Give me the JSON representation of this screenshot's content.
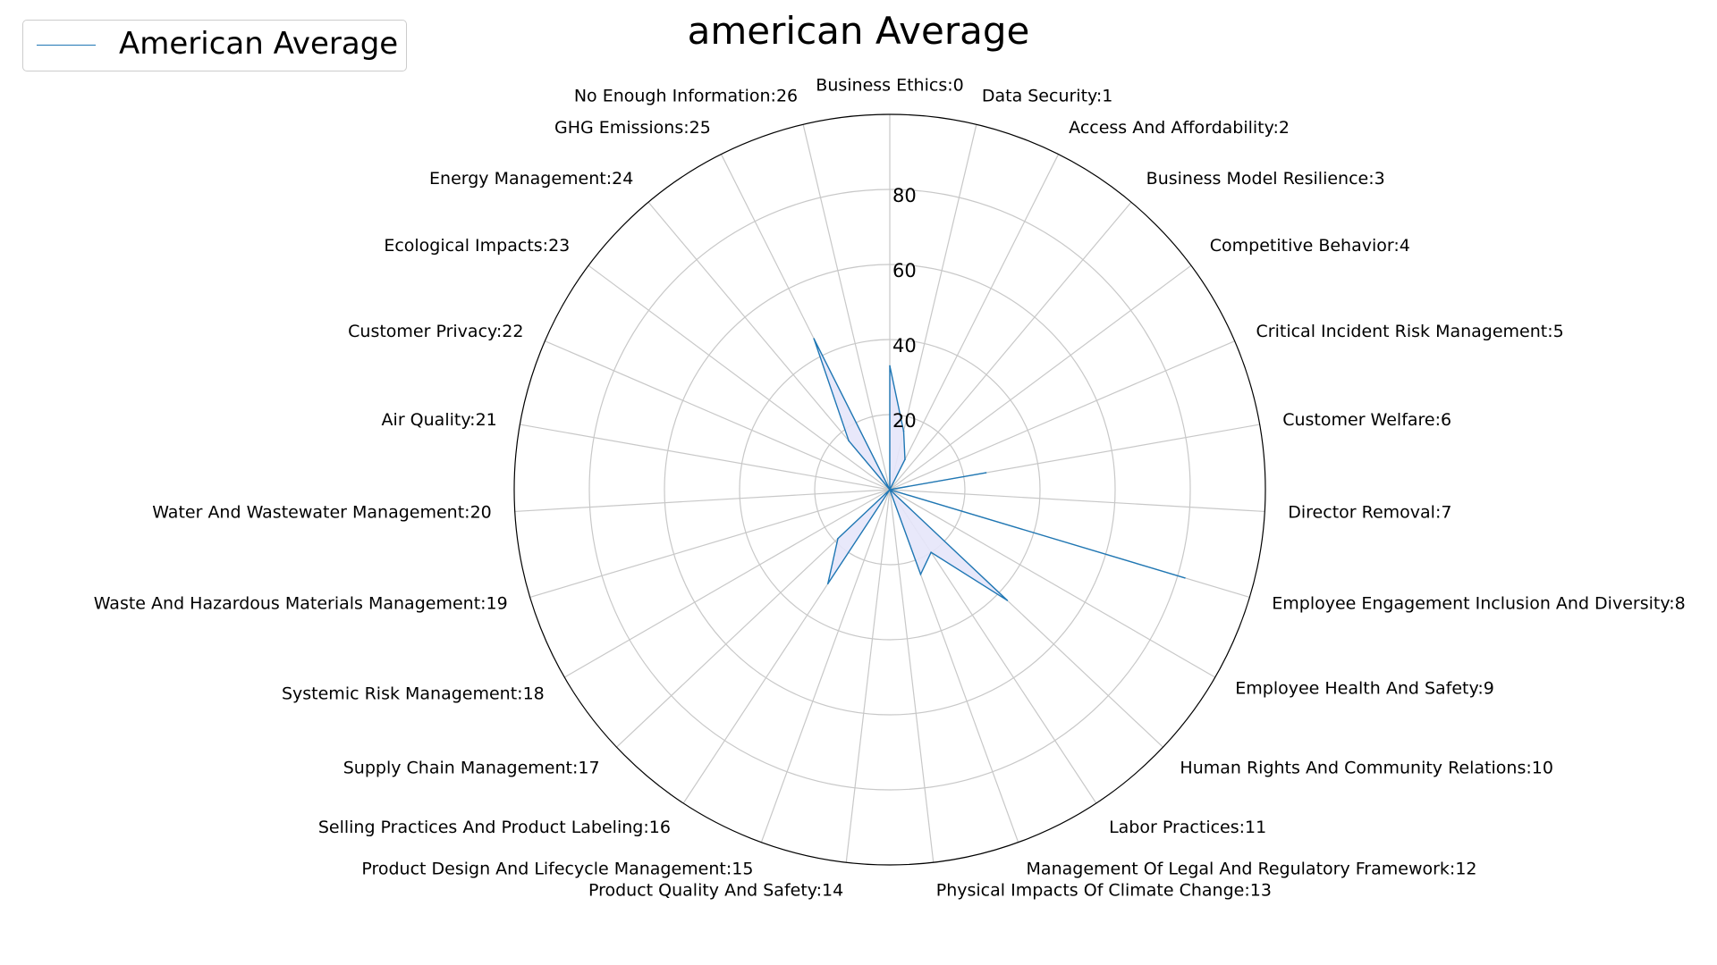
{
  "chart_data": {
    "type": "radar",
    "title": "american Average",
    "categories": [
      "Business Ethics:0",
      "Data Security:1",
      "Access And Affordability:2",
      "Business Model Resilience:3",
      "Competitive Behavior:4",
      "Critical Incident Risk Management:5",
      "Customer Welfare:6",
      "Director Removal:7",
      "Employee Engagement Inclusion And Diversity:8",
      "Employee Health And Safety:9",
      "Human Rights And Community Relations:10",
      "Labor Practices:11",
      "Management Of Legal And Regulatory Framework:12",
      "Physical Impacts Of Climate Change:13",
      "Product Quality And Safety:14",
      "Product Design And Lifecycle Management:15",
      "Selling Practices And Product Labeling:16",
      "Supply Chain Management:17",
      "Systemic Risk Management:18",
      "Waste And Hazardous Materials Management:19",
      "Water And Wastewater Management:20",
      "Air Quality:21",
      "Customer Privacy:22",
      "Ecological Impacts:23",
      "Energy Management:24",
      "GHG Emissions:25",
      "No Enough Information:26"
    ],
    "series": [
      {
        "name": "American Average",
        "values": [
          33,
          16,
          9,
          0,
          0,
          0,
          26,
          0,
          82,
          0,
          43,
          20,
          24,
          0,
          0,
          0,
          30,
          19,
          0,
          0,
          0,
          0,
          0,
          0,
          17,
          45,
          0
        ],
        "color": "#1f77b4",
        "fill": "#e6e6fa"
      }
    ],
    "rlim": [
      0,
      100
    ],
    "rticks": [
      20,
      40,
      60,
      80
    ],
    "rtick_labels": [
      "20",
      "40",
      "60",
      "80"
    ],
    "grid": true,
    "legend_position": "top-left"
  }
}
